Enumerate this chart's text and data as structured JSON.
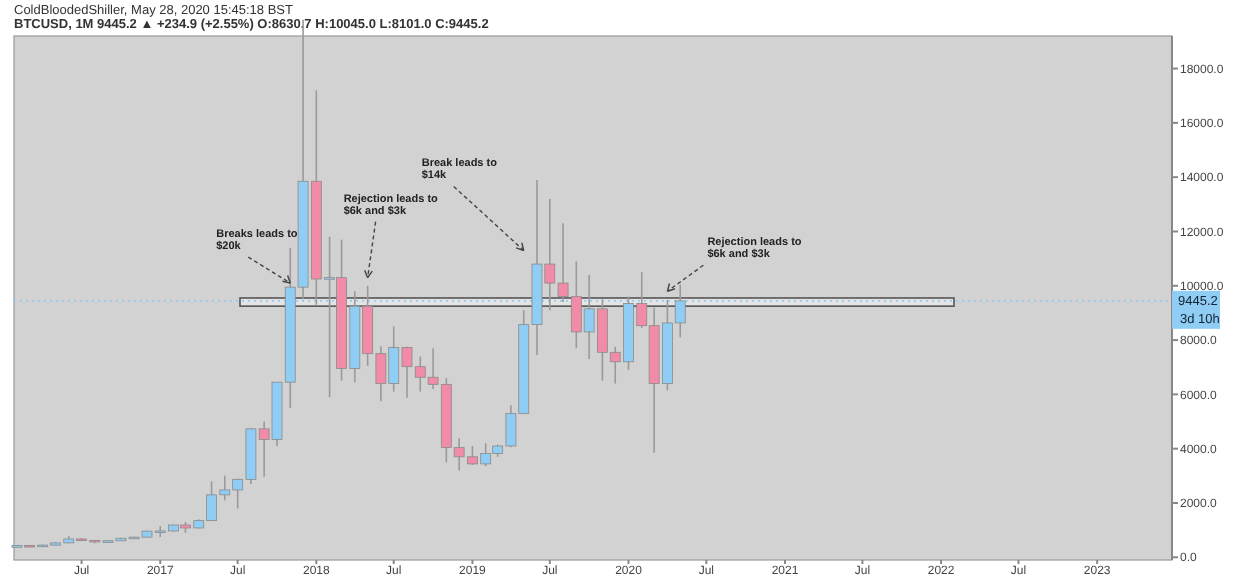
{
  "chart_data": {
    "type": "candlestick",
    "title": "BTCUSD, 1M 9445.2 ▲ +234.9 (+2.55%) O:8630.7 H:10045.0 L:8101.0 C:9445.2",
    "subtitle": "ColdBloodedShiller, May 28, 2020 15:45:18 BST",
    "x": [
      "2016-02",
      "2016-03",
      "2016-04",
      "2016-05",
      "2016-06",
      "2016-07",
      "2016-08",
      "2016-09",
      "2016-10",
      "2016-11",
      "2016-12",
      "2017-01",
      "2017-02",
      "2017-03",
      "2017-04",
      "2017-05",
      "2017-06",
      "2017-07",
      "2017-08",
      "2017-09",
      "2017-10",
      "2017-11",
      "2017-12",
      "2018-01",
      "2018-02",
      "2018-03",
      "2018-04",
      "2018-05",
      "2018-06",
      "2018-07",
      "2018-08",
      "2018-09",
      "2018-10",
      "2018-11",
      "2018-12",
      "2019-01",
      "2019-02",
      "2019-03",
      "2019-04",
      "2019-05",
      "2019-06",
      "2019-07",
      "2019-08",
      "2019-09",
      "2019-10",
      "2019-11",
      "2019-12",
      "2020-01",
      "2020-02",
      "2020-03",
      "2020-04",
      "2020-05"
    ],
    "ohlc": [
      [
        369,
        440,
        365,
        437
      ],
      [
        437,
        440,
        393,
        416
      ],
      [
        416,
        468,
        414,
        448
      ],
      [
        448,
        548,
        440,
        531
      ],
      [
        531,
        780,
        510,
        673
      ],
      [
        673,
        704,
        600,
        624
      ],
      [
        624,
        628,
        520,
        574
      ],
      [
        574,
        620,
        570,
        609
      ],
      [
        609,
        720,
        604,
        700
      ],
      [
        700,
        755,
        680,
        742
      ],
      [
        742,
        975,
        741,
        963
      ],
      [
        963,
        1150,
        750,
        970
      ],
      [
        970,
        1200,
        940,
        1190
      ],
      [
        1190,
        1300,
        900,
        1080
      ],
      [
        1080,
        1400,
        1060,
        1350
      ],
      [
        1350,
        2800,
        1350,
        2300
      ],
      [
        2300,
        3000,
        2100,
        2480
      ],
      [
        2480,
        2900,
        1800,
        2870
      ],
      [
        2870,
        4750,
        2700,
        4730
      ],
      [
        4730,
        5000,
        2970,
        4340
      ],
      [
        4340,
        6450,
        4100,
        6450
      ],
      [
        6450,
        11400,
        5500,
        9950
      ],
      [
        9950,
        19800,
        9500,
        13850
      ],
      [
        13850,
        17200,
        9300,
        10250
      ],
      [
        10250,
        11800,
        5900,
        10300
      ],
      [
        10300,
        11700,
        6500,
        6950
      ],
      [
        6950,
        9800,
        6450,
        9250
      ],
      [
        9250,
        10000,
        7050,
        7500
      ],
      [
        7500,
        7770,
        5750,
        6400
      ],
      [
        6400,
        8500,
        6100,
        7730
      ],
      [
        7730,
        7750,
        5880,
        7020
      ],
      [
        7020,
        7400,
        6100,
        6630
      ],
      [
        6630,
        7700,
        6200,
        6370
      ],
      [
        6370,
        6600,
        3500,
        4040
      ],
      [
        4040,
        4380,
        3200,
        3700
      ],
      [
        3700,
        4100,
        3400,
        3440
      ],
      [
        3440,
        4200,
        3350,
        3820
      ],
      [
        3820,
        4150,
        3700,
        4100
      ],
      [
        4100,
        5600,
        4050,
        5300
      ],
      [
        5300,
        9100,
        5300,
        8570
      ],
      [
        8570,
        13900,
        7450,
        10800
      ],
      [
        10800,
        13200,
        9100,
        10100
      ],
      [
        10100,
        12300,
        9400,
        9600
      ],
      [
        9600,
        10900,
        7700,
        8300
      ],
      [
        8300,
        10400,
        7300,
        9150
      ],
      [
        9150,
        9500,
        6500,
        7550
      ],
      [
        7550,
        7750,
        6400,
        7200
      ],
      [
        7200,
        9600,
        6900,
        9350
      ],
      [
        9350,
        10500,
        8450,
        8530
      ],
      [
        8530,
        9200,
        3850,
        6400
      ],
      [
        6400,
        9480,
        6150,
        8630.7
      ],
      [
        8630.7,
        10045.0,
        8101.0,
        9445.2
      ]
    ],
    "colors": [
      "#90cdf4",
      "#f28ba8",
      "#90cdf4",
      "#90cdf4",
      "#90cdf4",
      "#f28ba8",
      "#f28ba8",
      "#90cdf4",
      "#90cdf4",
      "#90cdf4",
      "#90cdf4",
      "#90cdf4",
      "#90cdf4",
      "#f28ba8",
      "#90cdf4",
      "#90cdf4",
      "#90cdf4",
      "#90cdf4",
      "#90cdf4",
      "#f28ba8",
      "#90cdf4",
      "#90cdf4",
      "#90cdf4",
      "#f28ba8",
      "#90cdf4",
      "#f28ba8",
      "#90cdf4",
      "#f28ba8",
      "#f28ba8",
      "#90cdf4",
      "#f28ba8",
      "#f28ba8",
      "#f28ba8",
      "#f28ba8",
      "#f28ba8",
      "#f28ba8",
      "#90cdf4",
      "#90cdf4",
      "#90cdf4",
      "#90cdf4",
      "#90cdf4",
      "#f28ba8",
      "#f28ba8",
      "#f28ba8",
      "#90cdf4",
      "#f28ba8",
      "#f28ba8",
      "#90cdf4",
      "#f28ba8",
      "#f28ba8",
      "#90cdf4",
      "#90cdf4"
    ],
    "xlim": [
      "2016-01-25",
      "2023-06-25"
    ],
    "xticks": [
      {
        "value": "2016-07",
        "label": "Jul"
      },
      {
        "value": "2017-01",
        "label": "2017"
      },
      {
        "value": "2017-07",
        "label": "Jul"
      },
      {
        "value": "2018-01",
        "label": "2018"
      },
      {
        "value": "2018-07",
        "label": "Jul"
      },
      {
        "value": "2019-01",
        "label": "2019"
      },
      {
        "value": "2019-07",
        "label": "Jul"
      },
      {
        "value": "2020-01",
        "label": "2020"
      },
      {
        "value": "2020-07",
        "label": "Jul"
      },
      {
        "value": "2021-01",
        "label": "2021"
      },
      {
        "value": "2021-07",
        "label": "Jul"
      },
      {
        "value": "2022-01",
        "label": "2022"
      },
      {
        "value": "2022-07",
        "label": "Jul"
      },
      {
        "value": "2023-01",
        "label": "2023"
      }
    ],
    "ylim": [
      -100,
      19200
    ],
    "yticks": [
      {
        "value": 0,
        "label": "0.0"
      },
      {
        "value": 2000,
        "label": "2000.0"
      },
      {
        "value": 4000,
        "label": "4000.0"
      },
      {
        "value": 6000,
        "label": "6000.0"
      },
      {
        "value": 8000,
        "label": "8000.0"
      },
      {
        "value": 10000,
        "label": "10000.0"
      },
      {
        "value": 12000,
        "label": "12000.0"
      },
      {
        "value": 14000,
        "label": "14000.0"
      },
      {
        "value": 16000,
        "label": "16000.0"
      },
      {
        "value": 18000,
        "label": "18000.0"
      }
    ],
    "bands": [
      {
        "axis": "y",
        "from": 9250,
        "to": 9550,
        "color": "#e4e4e4"
      }
    ],
    "ref_lines": [
      {
        "axis": "y",
        "value": 9445.2,
        "label": "9445.2",
        "color": "#90cdf4",
        "line_style": "dotted"
      }
    ],
    "annotations": [
      {
        "text": "Breaks leads to $20k",
        "x": "2017-11",
        "y": 10100
      },
      {
        "text": "Rejection leads to $6k and $3k",
        "x": "2018-05",
        "y": 10300
      },
      {
        "text": "Break leads to $14k",
        "x": "2019-05",
        "y": 11300
      },
      {
        "text": "Rejection leads to $6k and $3k",
        "x": "2020-04",
        "y": 9800
      },
      "3d 10h"
    ]
  }
}
